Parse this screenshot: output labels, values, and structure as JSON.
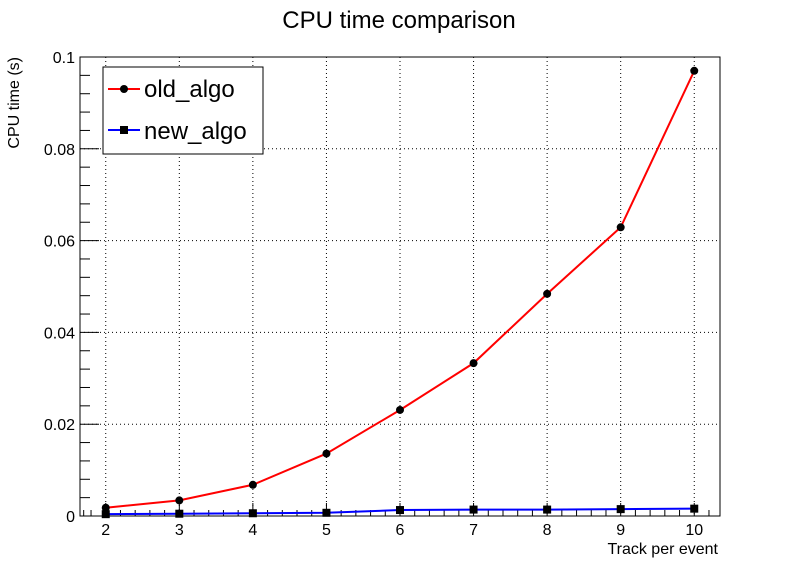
{
  "chart_data": {
    "type": "line",
    "title": "CPU time comparison",
    "xlabel": "Track per event",
    "ylabel": "CPU time (s)",
    "xlim": [
      1.65,
      10.35
    ],
    "ylim": [
      0,
      0.1
    ],
    "x_ticks": [
      2,
      3,
      4,
      5,
      6,
      7,
      8,
      9,
      10
    ],
    "y_ticks": [
      0,
      0.02,
      0.04,
      0.06,
      0.08,
      0.1
    ],
    "y_tick_labels": [
      "0",
      "0.02",
      "0.04",
      "0.06",
      "0.08",
      "0.1"
    ],
    "grid": true,
    "legend_position": "top-left",
    "x": [
      2,
      3,
      4,
      5,
      6,
      7,
      8,
      9,
      10
    ],
    "series": [
      {
        "name": "old_algo",
        "color": "#ff0000",
        "marker": "circle",
        "values": [
          0.0018,
          0.0034,
          0.0068,
          0.0136,
          0.0231,
          0.0333,
          0.0484,
          0.0629,
          0.097
        ]
      },
      {
        "name": "new_algo",
        "color": "#0000ff",
        "marker": "square",
        "values": [
          0.0004,
          0.0005,
          0.0006,
          0.0007,
          0.0013,
          0.0014,
          0.0014,
          0.0015,
          0.0016
        ]
      }
    ]
  }
}
